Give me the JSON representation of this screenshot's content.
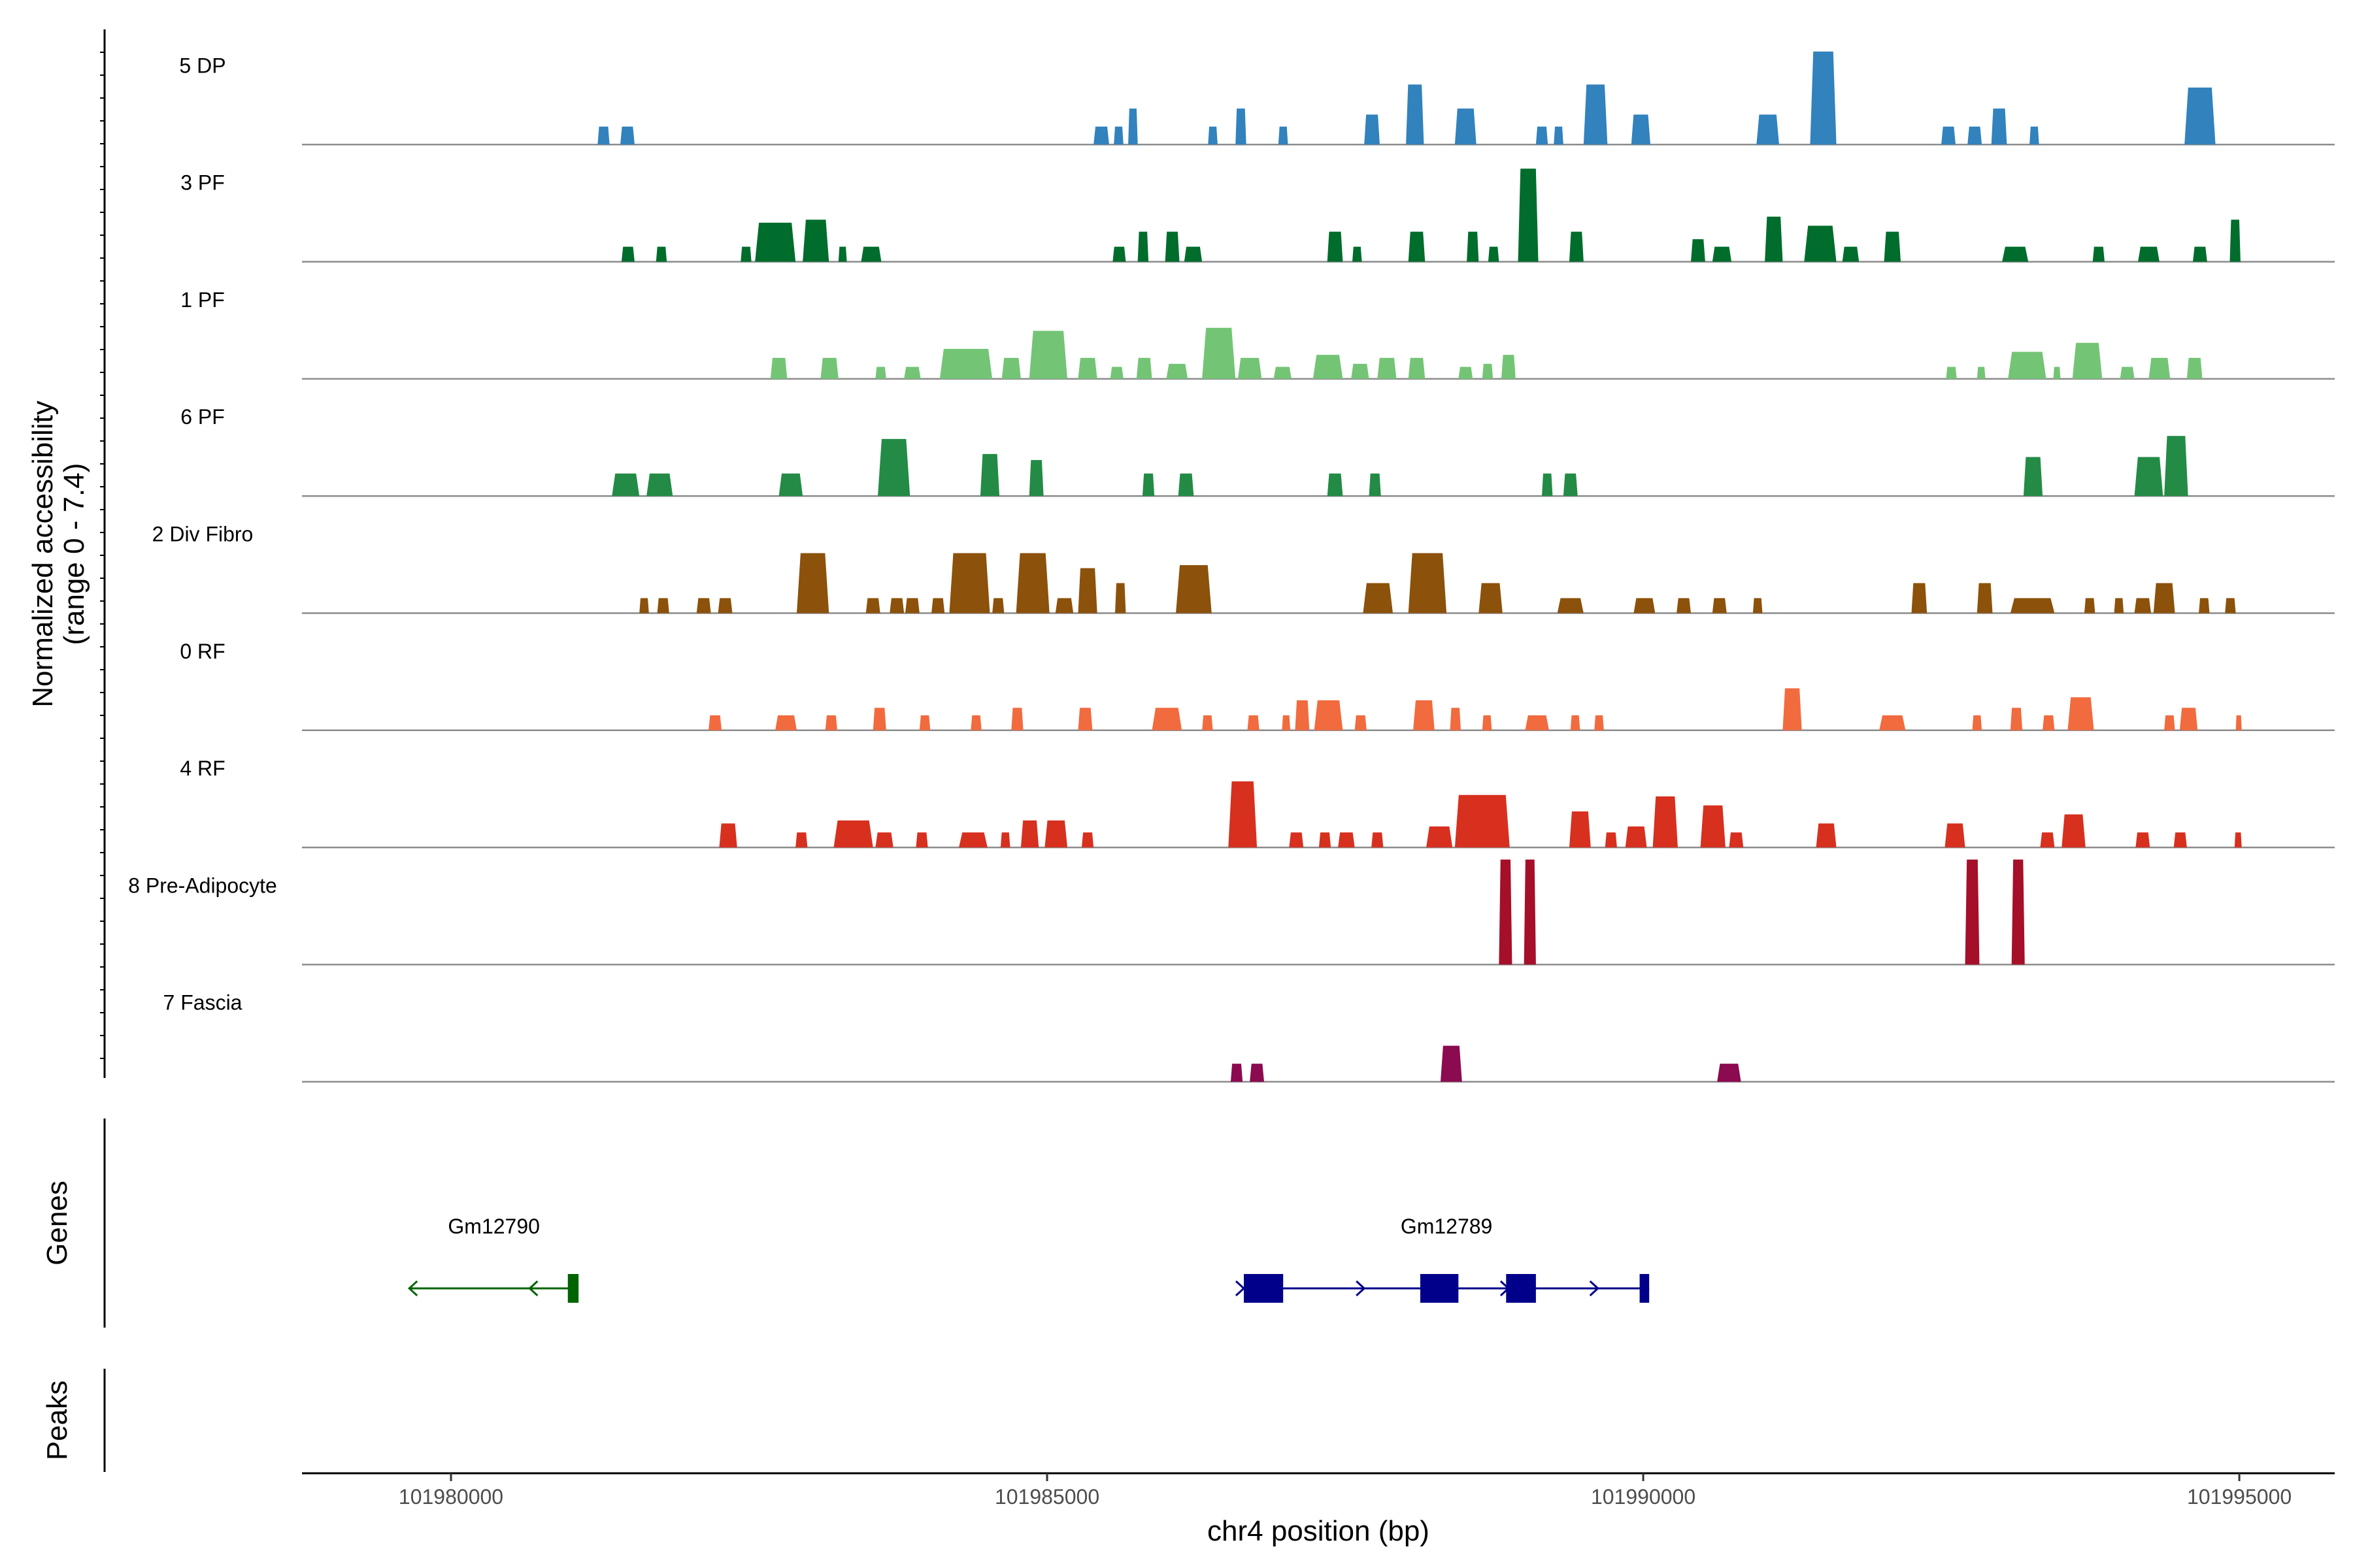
{
  "chart_data": {
    "type": "area",
    "title": "",
    "xlabel": "chr4 position (bp)",
    "ylabel": "Normalized accessibility\n(range 0 - 7.4)",
    "ylabel_line1": "Normalized accessibility",
    "ylabel_line2": "(range 0 - 7.4)",
    "y_range": [
      0,
      7.4
    ],
    "x_range": [
      101978750,
      101995800
    ],
    "x_ticks": [
      101980000,
      101985000,
      101990000,
      101995000
    ],
    "x_tick_labels": [
      "101980000",
      "101985000",
      "101990000",
      "101995000"
    ],
    "tracks": [
      {
        "name": "5 DP",
        "color": "#3182BD",
        "peaks": [
          [
            101981230,
            101981330,
            1.2
          ],
          [
            101981420,
            101981540,
            1.2
          ],
          [
            101985390,
            101985520,
            1.2
          ],
          [
            101985560,
            101985640,
            1.2
          ],
          [
            101985680,
            101985760,
            2.4
          ],
          [
            101986350,
            101986430,
            1.2
          ],
          [
            101986580,
            101986670,
            2.4
          ],
          [
            101986940,
            101987020,
            1.2
          ],
          [
            101987660,
            101987790,
            2.0
          ],
          [
            101988010,
            101988160,
            4.0
          ],
          [
            101988420,
            101988600,
            2.4
          ],
          [
            101989100,
            101989200,
            1.2
          ],
          [
            101989250,
            101989330,
            1.2
          ],
          [
            101989500,
            101989700,
            4.0
          ],
          [
            101989900,
            101990060,
            2.0
          ],
          [
            101990950,
            101991140,
            2.0
          ],
          [
            101991400,
            101991620,
            6.2
          ],
          [
            101992500,
            101992620,
            1.2
          ],
          [
            101992720,
            101992840,
            1.2
          ],
          [
            101992920,
            101993050,
            2.4
          ],
          [
            101993240,
            101993320,
            1.2
          ],
          [
            101994540,
            101994800,
            3.8
          ]
        ]
      },
      {
        "name": "3 PF",
        "color": "#006D2C",
        "peaks": [
          [
            101981430,
            101981540,
            1.0
          ],
          [
            101981720,
            101981810,
            1.0
          ],
          [
            101982430,
            101982520,
            1.0
          ],
          [
            101982550,
            101982890,
            2.6
          ],
          [
            101982950,
            101983170,
            2.8
          ],
          [
            101983250,
            101983320,
            1.0
          ],
          [
            101983440,
            101983610,
            1.0
          ],
          [
            101985550,
            101985660,
            1.0
          ],
          [
            101985760,
            101985850,
            2.0
          ],
          [
            101985990,
            101986110,
            2.0
          ],
          [
            101986150,
            101986300,
            1.0
          ],
          [
            101987350,
            101987480,
            2.0
          ],
          [
            101987560,
            101987640,
            1.0
          ],
          [
            101988030,
            101988170,
            2.0
          ],
          [
            101988520,
            101988620,
            2.0
          ],
          [
            101988700,
            101988790,
            1.0
          ],
          [
            101988950,
            101989120,
            6.2
          ],
          [
            101989380,
            101989500,
            2.0
          ],
          [
            101990400,
            101990520,
            1.5
          ],
          [
            101990580,
            101990740,
            1.0
          ],
          [
            101991020,
            101991170,
            3.0
          ],
          [
            101991350,
            101991620,
            2.4
          ],
          [
            101991670,
            101991810,
            1.0
          ],
          [
            101992020,
            101992160,
            2.0
          ],
          [
            101993010,
            101993230,
            1.0
          ],
          [
            101993770,
            101993870,
            1.0
          ],
          [
            101994150,
            101994330,
            1.0
          ],
          [
            101994610,
            101994730,
            1.0
          ],
          [
            101994920,
            101995010,
            2.8
          ]
        ]
      },
      {
        "name": "1 PF",
        "color": "#74C476",
        "peaks": [
          [
            101982680,
            101982820,
            1.4
          ],
          [
            101983100,
            101983250,
            1.4
          ],
          [
            101983560,
            101983650,
            0.8
          ],
          [
            101983800,
            101983940,
            0.8
          ],
          [
            101984100,
            101984540,
            2.0
          ],
          [
            101984620,
            101984780,
            1.4
          ],
          [
            101984850,
            101985170,
            3.2
          ],
          [
            101985260,
            101985420,
            1.4
          ],
          [
            101985530,
            101985640,
            0.8
          ],
          [
            101985750,
            101985880,
            1.4
          ],
          [
            101986000,
            101986180,
            1.0
          ],
          [
            101986300,
            101986580,
            3.4
          ],
          [
            101986600,
            101986800,
            1.4
          ],
          [
            101986900,
            101987050,
            0.8
          ],
          [
            101987230,
            101987480,
            1.6
          ],
          [
            101987550,
            101987700,
            1.0
          ],
          [
            101987770,
            101987930,
            1.4
          ],
          [
            101988030,
            101988170,
            1.4
          ],
          [
            101988450,
            101988570,
            0.8
          ],
          [
            101988650,
            101988740,
            1.0
          ],
          [
            101988810,
            101988930,
            1.6
          ],
          [
            101992540,
            101992630,
            0.8
          ],
          [
            101992800,
            101992870,
            0.8
          ],
          [
            101993060,
            101993380,
            1.8
          ],
          [
            101993440,
            101993500,
            0.8
          ],
          [
            101993600,
            101993850,
            2.4
          ],
          [
            101994000,
            101994120,
            0.8
          ],
          [
            101994240,
            101994420,
            1.4
          ],
          [
            101994560,
            101994690,
            1.4
          ]
        ]
      },
      {
        "name": "6 PF",
        "color": "#238B45",
        "peaks": [
          [
            101981350,
            101981580,
            1.5
          ],
          [
            101981640,
            101981860,
            1.5
          ],
          [
            101982750,
            101982950,
            1.5
          ],
          [
            101983580,
            101983850,
            3.8
          ],
          [
            101984440,
            101984600,
            2.8
          ],
          [
            101984850,
            101984970,
            2.4
          ],
          [
            101985800,
            101985900,
            1.5
          ],
          [
            101986100,
            101986230,
            1.5
          ],
          [
            101987350,
            101987480,
            1.5
          ],
          [
            101987700,
            101987800,
            1.5
          ],
          [
            101989150,
            101989240,
            1.5
          ],
          [
            101989330,
            101989450,
            1.5
          ],
          [
            101993190,
            101993350,
            2.6
          ],
          [
            101994120,
            101994360,
            2.6
          ],
          [
            101994370,
            101994570,
            4.0
          ]
        ]
      },
      {
        "name": "2 Div Fibro",
        "color": "#8C510A",
        "peaks": [
          [
            101981580,
            101981660,
            1.0
          ],
          [
            101981730,
            101981830,
            1.0
          ],
          [
            101982060,
            101982180,
            1.0
          ],
          [
            101982240,
            101982360,
            1.0
          ],
          [
            101982900,
            101983170,
            4.0
          ],
          [
            101983480,
            101983600,
            1.0
          ],
          [
            101983680,
            101983800,
            1.0
          ],
          [
            101983810,
            101983930,
            1.0
          ],
          [
            101984030,
            101984140,
            1.0
          ],
          [
            101984180,
            101984520,
            4.0
          ],
          [
            101984540,
            101984640,
            1.0
          ],
          [
            101984740,
            101985020,
            4.0
          ],
          [
            101985070,
            101985220,
            1.0
          ],
          [
            101985260,
            101985420,
            3.0
          ],
          [
            101985570,
            101985660,
            2.0
          ],
          [
            101986080,
            101986380,
            3.2
          ],
          [
            101987650,
            101987900,
            2.0
          ],
          [
            101988030,
            101988350,
            4.0
          ],
          [
            101988620,
            101988820,
            2.0
          ],
          [
            101989280,
            101989500,
            1.0
          ],
          [
            101989920,
            101990100,
            1.0
          ],
          [
            101990280,
            101990400,
            1.0
          ],
          [
            101990580,
            101990700,
            1.0
          ],
          [
            101990920,
            101991000,
            1.0
          ],
          [
            101992250,
            101992380,
            2.0
          ],
          [
            101992800,
            101992930,
            2.0
          ],
          [
            101993080,
            101993450,
            1.0
          ],
          [
            101993700,
            101993790,
            1.0
          ],
          [
            101993950,
            101994030,
            1.0
          ],
          [
            101994120,
            101994260,
            1.0
          ],
          [
            101994280,
            101994460,
            2.0
          ],
          [
            101994660,
            101994750,
            1.0
          ],
          [
            101994880,
            101994970,
            1.0
          ]
        ]
      },
      {
        "name": "0 RF",
        "color": "#F16B3F",
        "peaks": [
          [
            101982160,
            101982270,
            1.0
          ],
          [
            101982720,
            101982900,
            1.0
          ],
          [
            101983140,
            101983240,
            1.0
          ],
          [
            101983540,
            101983650,
            1.5
          ],
          [
            101983930,
            101984020,
            1.0
          ],
          [
            101984360,
            101984450,
            1.0
          ],
          [
            101984700,
            101984800,
            1.5
          ],
          [
            101985260,
            101985380,
            1.5
          ],
          [
            101985880,
            101986130,
            1.5
          ],
          [
            101986300,
            101986390,
            1.0
          ],
          [
            101986680,
            101986780,
            1.0
          ],
          [
            101986970,
            101987040,
            1.0
          ],
          [
            101987080,
            101987200,
            2.0
          ],
          [
            101987240,
            101987480,
            2.0
          ],
          [
            101987580,
            101987680,
            1.0
          ],
          [
            101988070,
            101988250,
            2.0
          ],
          [
            101988380,
            101988470,
            1.5
          ],
          [
            101988650,
            101988730,
            1.0
          ],
          [
            101989010,
            101989210,
            1.0
          ],
          [
            101989390,
            101989470,
            1.0
          ],
          [
            101989590,
            101989670,
            1.0
          ],
          [
            101991170,
            101991330,
            2.8
          ],
          [
            101991980,
            101992200,
            1.0
          ],
          [
            101992760,
            101992840,
            1.0
          ],
          [
            101993080,
            101993180,
            1.5
          ],
          [
            101993350,
            101993450,
            1.0
          ],
          [
            101993560,
            101993780,
            2.2
          ],
          [
            101994370,
            101994460,
            1.0
          ],
          [
            101994500,
            101994650,
            1.5
          ],
          [
            101994970,
            101995020,
            1.0
          ]
        ]
      },
      {
        "name": "4 RF",
        "color": "#D7301F",
        "peaks": [
          [
            101982250,
            101982400,
            1.6
          ],
          [
            101982890,
            101982990,
            1.0
          ],
          [
            101983210,
            101983540,
            1.8
          ],
          [
            101983560,
            101983710,
            1.0
          ],
          [
            101983900,
            101984000,
            1.0
          ],
          [
            101984260,
            101984500,
            1.0
          ],
          [
            101984610,
            101984690,
            1.0
          ],
          [
            101984780,
            101984930,
            1.8
          ],
          [
            101984980,
            101985170,
            1.8
          ],
          [
            101985290,
            101985390,
            1.0
          ],
          [
            101986520,
            101986760,
            4.4
          ],
          [
            101987030,
            101987150,
            1.0
          ],
          [
            101987280,
            101987380,
            1.0
          ],
          [
            101987440,
            101987580,
            1.0
          ],
          [
            101987720,
            101987820,
            1.0
          ],
          [
            101988180,
            101988400,
            1.4
          ],
          [
            101988420,
            101988880,
            3.5
          ],
          [
            101989380,
            101989560,
            2.4
          ],
          [
            101989680,
            101989780,
            1.0
          ],
          [
            101989850,
            101990030,
            1.4
          ],
          [
            101990080,
            101990290,
            3.4
          ],
          [
            101990480,
            101990690,
            2.8
          ],
          [
            101990720,
            101990840,
            1.0
          ],
          [
            101991450,
            101991620,
            1.6
          ],
          [
            101992530,
            101992700,
            1.6
          ],
          [
            101993330,
            101993450,
            1.0
          ],
          [
            101993510,
            101993710,
            2.2
          ],
          [
            101994130,
            101994250,
            1.0
          ],
          [
            101994450,
            101994560,
            1.0
          ],
          [
            101994960,
            101995020,
            1.0
          ]
        ]
      },
      {
        "name": "8 Pre-Adipocyte",
        "color": "#A50F29",
        "peaks": [
          [
            101988790,
            101988900,
            7.0
          ],
          [
            101989000,
            101989100,
            7.0
          ],
          [
            101992700,
            101992820,
            7.0
          ],
          [
            101993090,
            101993200,
            7.0
          ]
        ]
      },
      {
        "name": "7 Fascia",
        "color": "#8B0A50",
        "peaks": [
          [
            101986540,
            101986640,
            1.2
          ],
          [
            101986700,
            101986820,
            1.2
          ],
          [
            101988300,
            101988480,
            2.4
          ],
          [
            101990620,
            101990820,
            1.2
          ]
        ]
      }
    ],
    "genes_panel_label": "Genes",
    "peaks_panel_label": "Peaks",
    "genes": [
      {
        "name": "Gm12790",
        "strand": "-",
        "color": "#006400",
        "start": 101979650,
        "end": 101981070,
        "exons": [
          [
            101980980,
            101981070
          ]
        ],
        "arrows": [
          101979650,
          101980660
        ]
      },
      {
        "name": "Gm12789",
        "strand": "+",
        "color": "#00008B",
        "start": 101986650,
        "end": 101990050,
        "exons": [
          [
            101986650,
            101986980
          ],
          [
            101988130,
            101988450
          ],
          [
            101988850,
            101989100
          ],
          [
            101989970,
            101990050
          ]
        ],
        "arrows": [
          101986650,
          101987660,
          101988870,
          101989620
        ]
      }
    ]
  }
}
